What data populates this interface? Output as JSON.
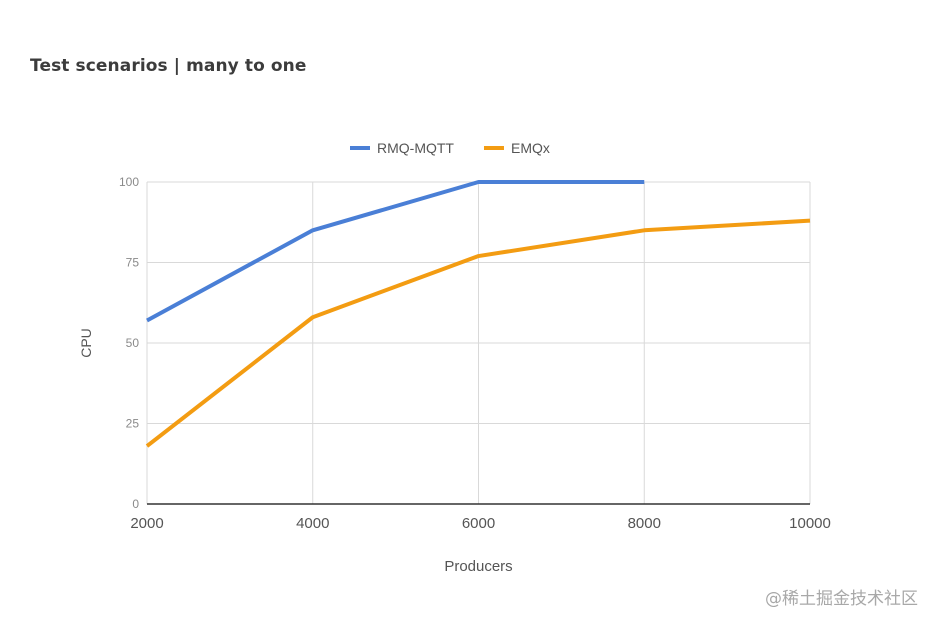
{
  "page": {
    "title": "Test scenarios | many to one",
    "watermark": "@稀土掘金技术社区"
  },
  "chart_data": {
    "type": "line",
    "title": "",
    "xlabel": "Producers",
    "ylabel": "CPU",
    "x": [
      2000,
      4000,
      6000,
      8000,
      10000
    ],
    "x_tick_labels": [
      "2000",
      "4000",
      "6000",
      "8000",
      "10000"
    ],
    "ylim": [
      0,
      100
    ],
    "y_ticks": [
      0,
      25,
      50,
      75,
      100
    ],
    "y_tick_labels": [
      "0",
      "25",
      "50",
      "75",
      "100"
    ],
    "grid": true,
    "legend_position": "top",
    "series": [
      {
        "name": "RMQ-MQTT",
        "color": "#4a7fd6",
        "values": [
          57,
          85,
          100,
          100,
          null
        ]
      },
      {
        "name": "EMQx",
        "color": "#f39c12",
        "values": [
          18,
          58,
          77,
          85,
          88
        ]
      }
    ]
  }
}
